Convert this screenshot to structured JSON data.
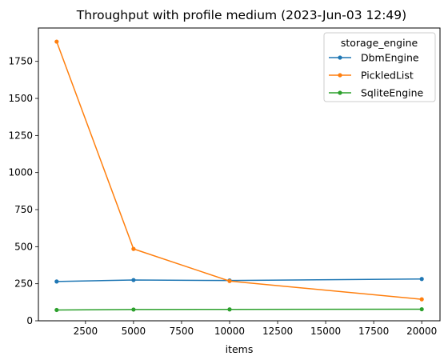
{
  "chart_data": {
    "type": "line",
    "title": "Throughput with profile medium (2023-Jun-03 12:49)",
    "xlabel": "items",
    "ylabel": "",
    "x": [
      1000,
      5000,
      10000,
      20000
    ],
    "xlim": [
      50,
      20950
    ],
    "ylim": [
      0,
      1975
    ],
    "xticks": [
      2500,
      5000,
      7500,
      10000,
      12500,
      15000,
      17500,
      20000
    ],
    "xtick_labels": [
      "2500",
      "5000",
      "7500",
      "10000",
      "12500",
      "15000",
      "17500",
      "20000"
    ],
    "yticks": [
      0,
      250,
      500,
      750,
      1000,
      1250,
      1500,
      1750
    ],
    "ytick_labels": [
      "0",
      "250",
      "500",
      "750",
      "1000",
      "1250",
      "1500",
      "1750"
    ],
    "grid": false,
    "legend": {
      "title": "storage_engine",
      "placement": "top-right"
    },
    "series": [
      {
        "name": "DbmEngine",
        "color": "#1f77b4",
        "values": [
          265,
          275,
          272,
          282
        ]
      },
      {
        "name": "PickledList",
        "color": "#ff7f0e",
        "values": [
          1883,
          485,
          268,
          145
        ]
      },
      {
        "name": "SqliteEngine",
        "color": "#2ca02c",
        "values": [
          73,
          76,
          77,
          78
        ]
      }
    ]
  }
}
